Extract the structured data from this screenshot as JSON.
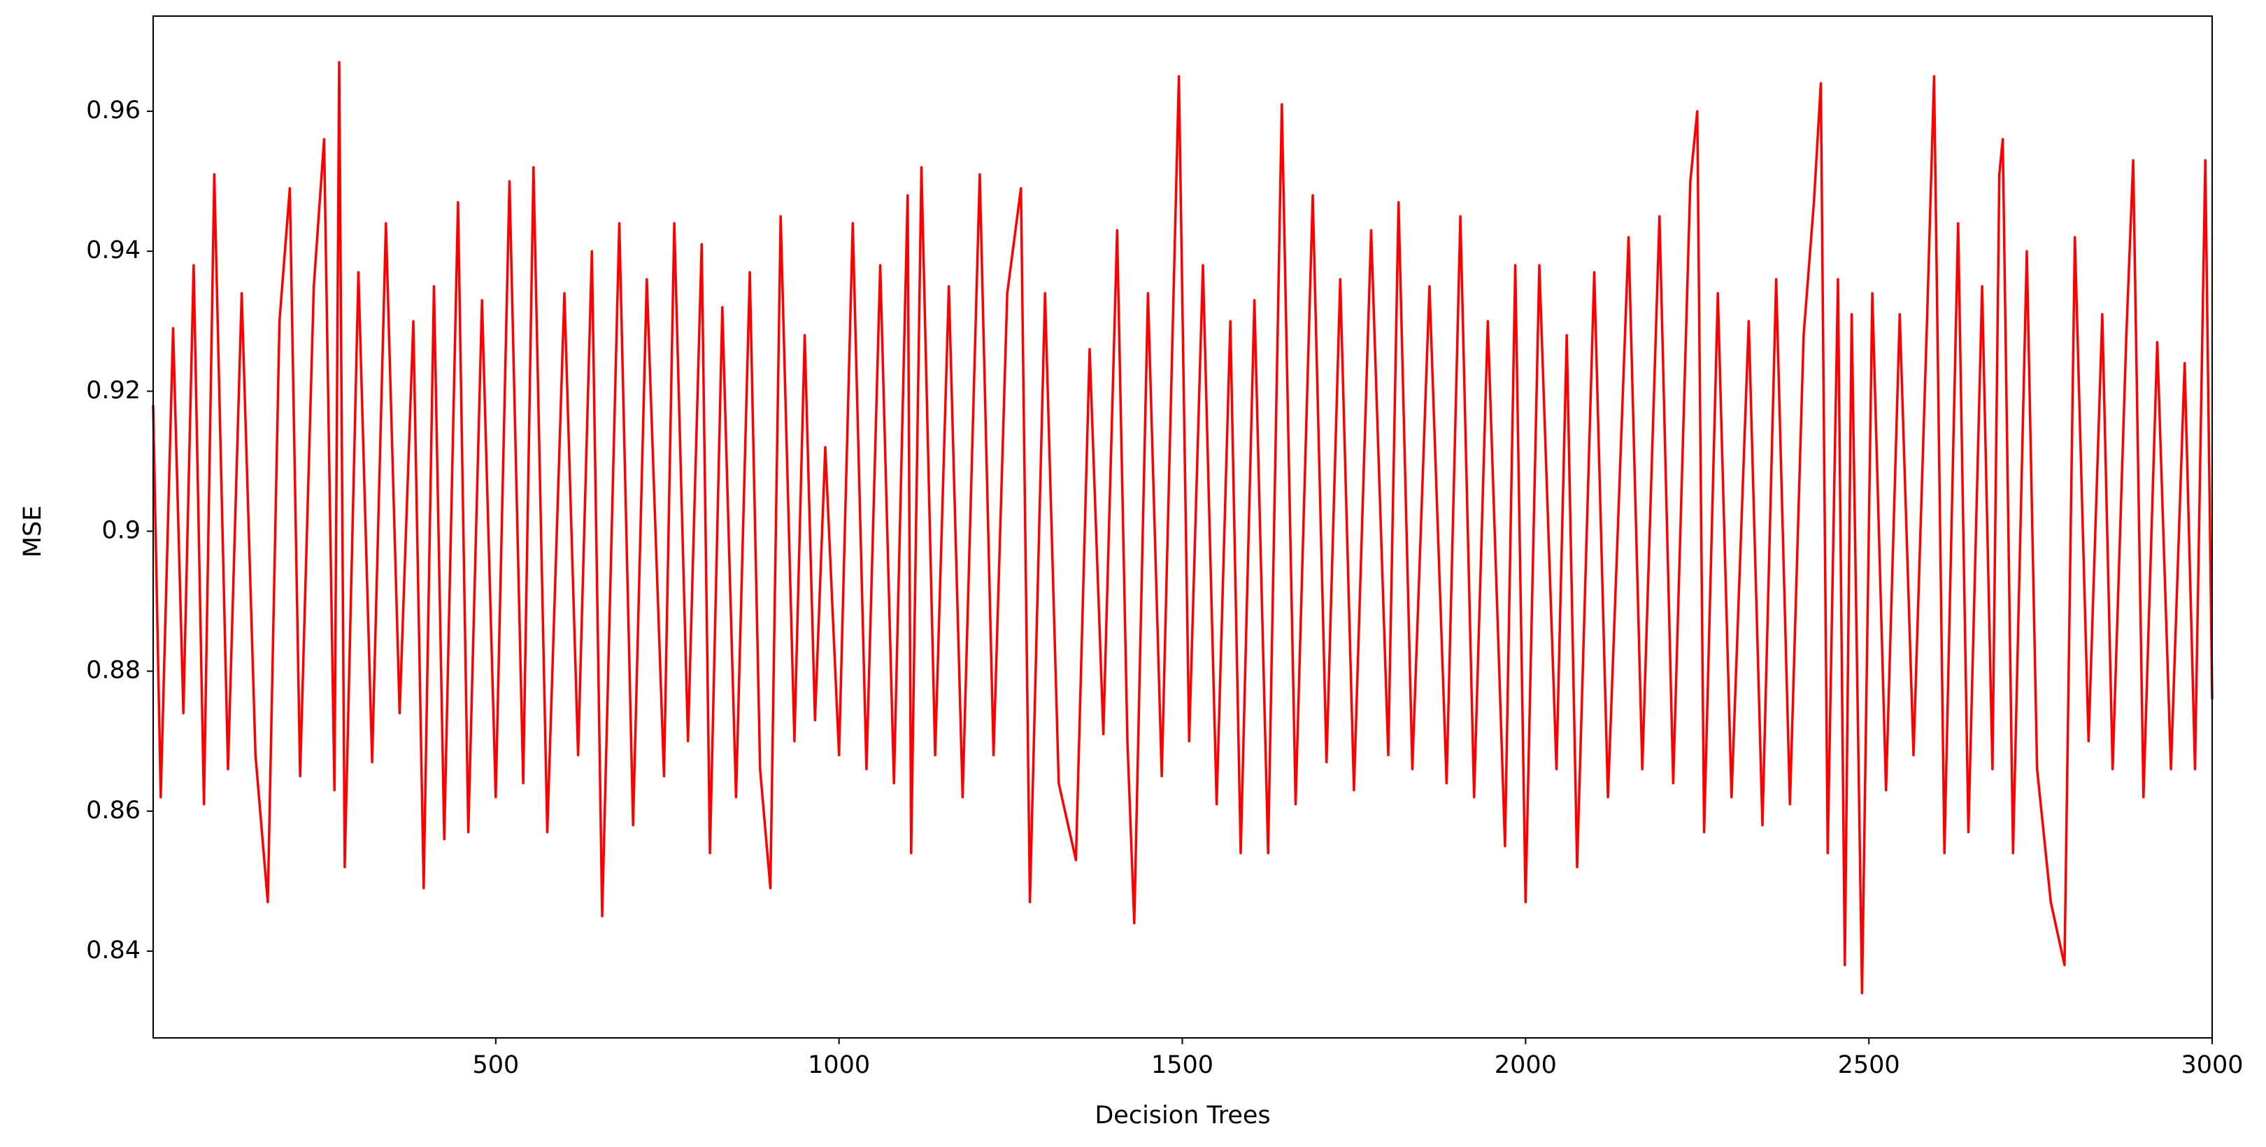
{
  "chart_data": {
    "type": "line",
    "x_label": "Decision Trees",
    "y_label": "MSE",
    "color": "#ff0000",
    "x": [
      1,
      12,
      30,
      45,
      60,
      75,
      90,
      110,
      130,
      150,
      168,
      185,
      200,
      215,
      235,
      250,
      265,
      272,
      280,
      300,
      320,
      340,
      360,
      380,
      395,
      410,
      425,
      445,
      460,
      480,
      500,
      520,
      540,
      555,
      575,
      600,
      620,
      640,
      655,
      680,
      700,
      720,
      745,
      760,
      780,
      800,
      812,
      830,
      850,
      870,
      885,
      900,
      915,
      935,
      950,
      965,
      980,
      1000,
      1020,
      1040,
      1060,
      1080,
      1100,
      1105,
      1120,
      1140,
      1160,
      1180,
      1205,
      1225,
      1245,
      1265,
      1278,
      1300,
      1320,
      1345,
      1365,
      1385,
      1405,
      1420,
      1430,
      1450,
      1470,
      1495,
      1510,
      1530,
      1550,
      1570,
      1585,
      1605,
      1625,
      1645,
      1665,
      1690,
      1710,
      1730,
      1750,
      1775,
      1800,
      1815,
      1835,
      1860,
      1885,
      1905,
      1925,
      1945,
      1970,
      1985,
      2000,
      2020,
      2045,
      2060,
      2075,
      2100,
      2120,
      2150,
      2170,
      2195,
      2215,
      2240,
      2250,
      2260,
      2280,
      2300,
      2325,
      2345,
      2365,
      2385,
      2405,
      2420,
      2430,
      2440,
      2455,
      2465,
      2475,
      2490,
      2505,
      2525,
      2545,
      2565,
      2585,
      2595,
      2610,
      2630,
      2645,
      2665,
      2680,
      2690,
      2695,
      2710,
      2730,
      2745,
      2765,
      2785,
      2800,
      2820,
      2840,
      2855,
      2875,
      2885,
      2900,
      2920,
      2940,
      2960,
      2975,
      2990,
      3000
    ],
    "values": [
      0.918,
      0.862,
      0.929,
      0.874,
      0.938,
      0.861,
      0.951,
      0.866,
      0.934,
      0.868,
      0.847,
      0.93,
      0.949,
      0.865,
      0.935,
      0.956,
      0.863,
      0.967,
      0.852,
      0.937,
      0.867,
      0.944,
      0.874,
      0.93,
      0.849,
      0.935,
      0.856,
      0.947,
      0.857,
      0.933,
      0.862,
      0.95,
      0.864,
      0.952,
      0.857,
      0.934,
      0.868,
      0.94,
      0.845,
      0.944,
      0.858,
      0.936,
      0.865,
      0.944,
      0.87,
      0.941,
      0.854,
      0.932,
      0.862,
      0.937,
      0.866,
      0.849,
      0.945,
      0.87,
      0.928,
      0.873,
      0.912,
      0.868,
      0.944,
      0.866,
      0.938,
      0.864,
      0.948,
      0.854,
      0.952,
      0.868,
      0.935,
      0.862,
      0.951,
      0.868,
      0.934,
      0.949,
      0.847,
      0.934,
      0.864,
      0.853,
      0.926,
      0.871,
      0.943,
      0.87,
      0.844,
      0.934,
      0.865,
      0.965,
      0.87,
      0.938,
      0.861,
      0.93,
      0.854,
      0.933,
      0.854,
      0.961,
      0.861,
      0.948,
      0.867,
      0.936,
      0.863,
      0.943,
      0.868,
      0.947,
      0.866,
      0.935,
      0.864,
      0.945,
      0.862,
      0.93,
      0.855,
      0.938,
      0.847,
      0.938,
      0.866,
      0.928,
      0.852,
      0.937,
      0.862,
      0.942,
      0.866,
      0.945,
      0.864,
      0.95,
      0.96,
      0.857,
      0.934,
      0.862,
      0.93,
      0.858,
      0.936,
      0.861,
      0.928,
      0.947,
      0.964,
      0.854,
      0.936,
      0.838,
      0.931,
      0.834,
      0.934,
      0.863,
      0.931,
      0.868,
      0.931,
      0.965,
      0.854,
      0.944,
      0.857,
      0.935,
      0.866,
      0.951,
      0.956,
      0.854,
      0.94,
      0.866,
      0.847,
      0.838,
      0.942,
      0.87,
      0.931,
      0.866,
      0.928,
      0.953,
      0.862,
      0.927,
      0.866,
      0.924,
      0.866,
      0.953,
      0.876
    ],
    "xlim": [
      1,
      3000
    ],
    "ylim": [
      0.8276,
      0.9736
    ],
    "xticks": [
      500,
      1000,
      1500,
      2000,
      2500,
      3000
    ],
    "yticks": [
      0.84,
      0.86,
      0.88,
      0.9,
      0.92,
      0.94,
      0.96
    ]
  }
}
